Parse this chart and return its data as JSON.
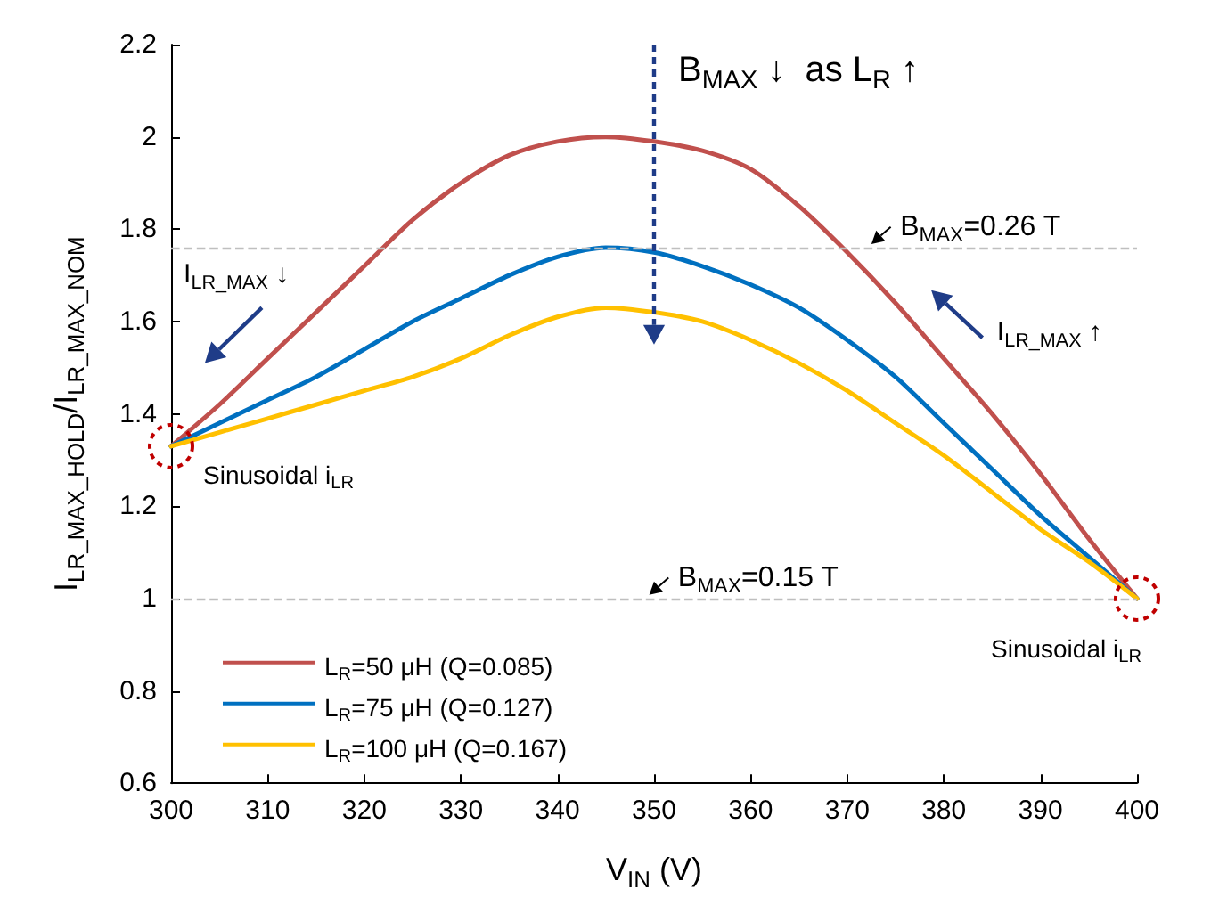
{
  "chart_data": {
    "type": "line",
    "xlabel": "V$_{IN}$ (V)",
    "ylabel": "I$_{LR_MAX_HOLD}$/I$_{LR_MAX_NOM}$",
    "x": [
      300,
      305,
      310,
      315,
      320,
      325,
      330,
      335,
      340,
      345,
      350,
      355,
      360,
      365,
      370,
      375,
      380,
      385,
      390,
      395,
      400
    ],
    "series": [
      {
        "name": "L$_{R}$=50 μH (Q=0.085)",
        "color": "#c0504d",
        "values": [
          1.33,
          1.42,
          1.52,
          1.62,
          1.72,
          1.82,
          1.9,
          1.96,
          1.99,
          2.0,
          1.99,
          1.97,
          1.93,
          1.85,
          1.75,
          1.64,
          1.52,
          1.4,
          1.27,
          1.13,
          1.0
        ]
      },
      {
        "name": "L$_{R}$=75 μH (Q=0.127)",
        "color": "#0070c0",
        "values": [
          1.33,
          1.38,
          1.43,
          1.48,
          1.54,
          1.6,
          1.65,
          1.7,
          1.74,
          1.76,
          1.75,
          1.72,
          1.68,
          1.63,
          1.56,
          1.48,
          1.38,
          1.28,
          1.18,
          1.09,
          1.0
        ]
      },
      {
        "name": "L$_{R}$=100 μH (Q=0.167)",
        "color": "#ffc000",
        "values": [
          1.33,
          1.36,
          1.39,
          1.42,
          1.45,
          1.48,
          1.52,
          1.57,
          1.61,
          1.63,
          1.62,
          1.6,
          1.56,
          1.51,
          1.45,
          1.38,
          1.31,
          1.23,
          1.15,
          1.08,
          1.0
        ]
      }
    ],
    "xlim": [
      300,
      400
    ],
    "xticks": [
      300,
      310,
      320,
      330,
      340,
      350,
      360,
      370,
      380,
      390,
      400
    ],
    "ylim": [
      0.6,
      2.2
    ],
    "yticks": [
      0.6,
      0.8,
      1,
      1.2,
      1.4,
      1.6,
      1.8,
      2,
      2.2
    ],
    "ref_lines": [
      {
        "axis": "y",
        "value": 1.76,
        "color": "#bfbfbf",
        "line_style": "dashed"
      },
      {
        "axis": "y",
        "value": 1.0,
        "color": "#bfbfbf",
        "line_style": "dashed"
      }
    ],
    "annotations": [
      "B$_{MAX}$ ↓  as L$_{R}$ ↑",
      "I$_{LR_MAX}$ ↓",
      "I$_{LR_MAX}$ ↑",
      {
        "text": "Sinusoidal i$_{LR}$",
        "x": 300,
        "y": 1.33
      },
      {
        "text": "Sinusoidal i$_{LR}$",
        "x": 400,
        "y": 1.0
      },
      {
        "text": "B$_{MAX}$=0.26 T",
        "x": 374,
        "y": 1.76
      },
      {
        "text": "B$_{MAX}$=0.15 T",
        "x": 351,
        "y": 1.0
      }
    ],
    "grid": false,
    "legend": "bottom left",
    "marker": "none",
    "line_style": "solid"
  }
}
